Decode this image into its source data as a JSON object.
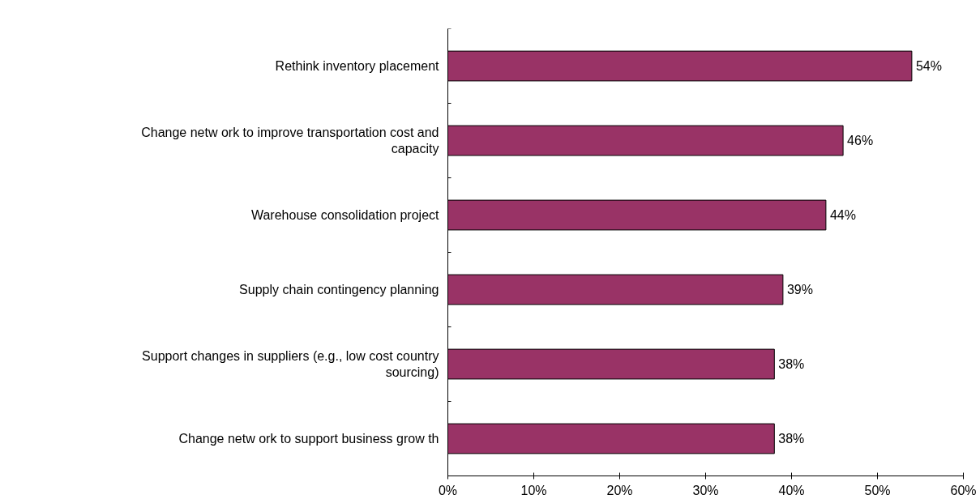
{
  "chart_data": {
    "type": "bar",
    "orientation": "horizontal",
    "categories": [
      "Rethink inventory placement",
      "Change netw ork to improve transportation cost and capacity",
      "Warehouse consolidation project",
      "Supply chain contingency planning",
      "Support changes in suppliers (e.g., low cost country sourcing)",
      "Change netw ork to support business grow th"
    ],
    "values": [
      54,
      46,
      44,
      39,
      38,
      38
    ],
    "value_labels": [
      "54%",
      "46%",
      "44%",
      "39%",
      "38%",
      "38%"
    ],
    "color": "#993366",
    "xlim": [
      0,
      60
    ],
    "xticks": [
      {
        "value": 0,
        "label": "0%"
      },
      {
        "value": 10,
        "label": "10%"
      },
      {
        "value": 20,
        "label": "20%"
      },
      {
        "value": 30,
        "label": "30%"
      },
      {
        "value": 40,
        "label": "40%"
      },
      {
        "value": 50,
        "label": "50%"
      },
      {
        "value": 60,
        "label": "60%"
      }
    ],
    "grid": false
  }
}
